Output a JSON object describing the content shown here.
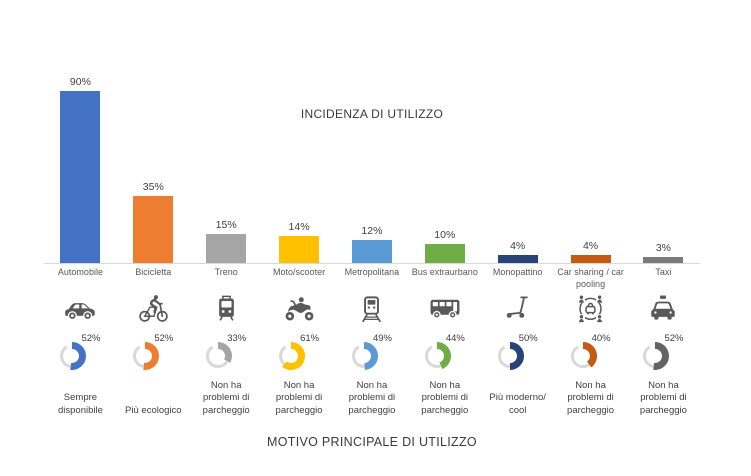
{
  "background_color": "#FFFFFF",
  "chart_data": [
    {
      "type": "bar",
      "title": "INCIDENZA DI UTILIZZO",
      "unit": "%",
      "categories": [
        "Automobile",
        "Bicicletta",
        "Treno",
        "Moto/scooter",
        "Metropolitana",
        "Bus extraurbano",
        "Monopattino",
        "Car sharing / car pooling",
        "Taxi"
      ],
      "values": [
        90,
        35,
        15,
        14,
        12,
        10,
        4,
        4,
        3
      ],
      "value_labels": [
        "90%",
        "35%",
        "15%",
        "14%",
        "12%",
        "10%",
        "4%",
        "4%",
        "3%"
      ],
      "colors": [
        "#4472C4",
        "#ED7D31",
        "#A5A5A5",
        "#FFC000",
        "#5B9BD5",
        "#70AD47",
        "#264478",
        "#C55A11",
        "#7B7B7B"
      ],
      "ylim": [
        0,
        100
      ],
      "grid": false,
      "legend": "none",
      "axis_color": "#D9D9D9"
    },
    {
      "type": "gauge-row",
      "title": "MOTIVO PRINCIPALE DI UTILIZZO",
      "unit": "%",
      "categories": [
        "Automobile",
        "Bicicletta",
        "Treno",
        "Moto/scooter",
        "Metropolitana",
        "Bus extraurbano",
        "Monopattino",
        "Car sharing / car pooling",
        "Taxi"
      ],
      "icons": [
        "car-icon",
        "bicycle-icon",
        "tram-icon",
        "motorcycle-icon",
        "metro-icon",
        "bus-icon",
        "kick-scooter-icon",
        "car-sharing-icon",
        "taxi-icon"
      ],
      "values": [
        52,
        52,
        33,
        61,
        49,
        44,
        50,
        40,
        52
      ],
      "value_labels": [
        "52%",
        "52%",
        "33%",
        "61%",
        "49%",
        "44%",
        "50%",
        "40%",
        "52%"
      ],
      "reasons": [
        "Sempre disponibile",
        "Più ecologico",
        "Non ha problemi di parcheggio",
        "Non ha problemi di parcheggio",
        "Non ha problemi di parcheggio",
        "Non ha problemi di parcheggio",
        "Più moderno/ cool",
        "Non ha problemi di parcheggio",
        "Non ha problemi di parcheggio"
      ],
      "colors": [
        "#4472C4",
        "#ED7D31",
        "#A5A5A5",
        "#FFC000",
        "#5B9BD5",
        "#70AD47",
        "#264478",
        "#C55A11",
        "#636363"
      ],
      "ring_color": "#D9D9D9",
      "icon_color": "#595959"
    }
  ]
}
